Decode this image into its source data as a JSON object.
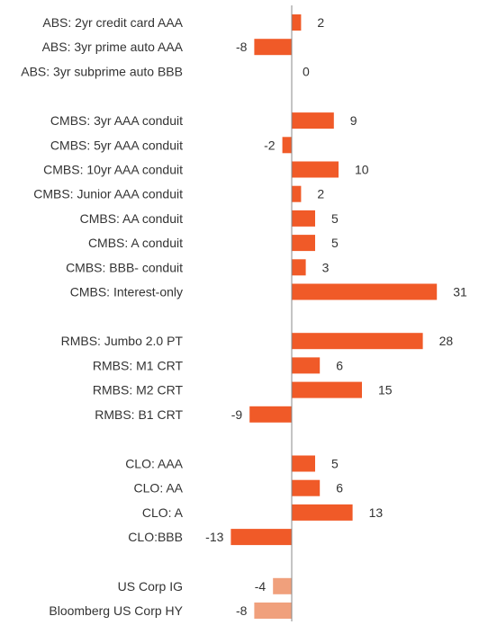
{
  "chart_data": {
    "type": "bar",
    "orientation": "horizontal",
    "title": "",
    "xlabel": "",
    "ylabel": "",
    "xlim": [
      -15,
      32
    ],
    "grid": false,
    "legend": "none",
    "colors": {
      "primary": "#f05a28",
      "secondary": "#f0a07c",
      "axis": "#888888"
    },
    "categories": [
      "ABS: 2yr credit card AAA",
      "ABS: 3yr prime auto AAA",
      "ABS: 3yr subprime auto BBB",
      "CMBS: 3yr AAA conduit",
      "CMBS: 5yr AAA conduit",
      "CMBS: 10yr AAA conduit",
      "CMBS: Junior AAA conduit",
      "CMBS: AA conduit",
      "CMBS: A conduit",
      "CMBS: BBB- conduit",
      "CMBS: Interest-only",
      "RMBS: Jumbo 2.0 PT",
      "RMBS: M1 CRT",
      "RMBS: M2 CRT",
      "RMBS: B1 CRT",
      "CLO: AAA",
      "CLO: AA",
      "CLO: A",
      "CLO:BBB",
      "US Corp IG",
      "Bloomberg US Corp HY"
    ],
    "values": [
      2,
      -8,
      0,
      9,
      -2,
      10,
      2,
      5,
      5,
      3,
      31,
      28,
      6,
      15,
      -9,
      5,
      6,
      13,
      -13,
      -4,
      -8
    ],
    "group": [
      0,
      0,
      0,
      1,
      1,
      1,
      1,
      1,
      1,
      1,
      1,
      2,
      2,
      2,
      2,
      3,
      3,
      3,
      3,
      4,
      4
    ],
    "highlight": [
      "primary",
      "primary",
      "primary",
      "primary",
      "primary",
      "primary",
      "primary",
      "primary",
      "primary",
      "primary",
      "primary",
      "primary",
      "primary",
      "primary",
      "primary",
      "primary",
      "primary",
      "primary",
      "primary",
      "secondary",
      "secondary"
    ],
    "value_labels": [
      "2",
      "-8",
      "0",
      "9",
      "-2",
      "10",
      "2",
      "5",
      "5",
      "3",
      "31",
      "28",
      "6",
      "15",
      "-9",
      "5",
      "6",
      "13",
      "-13",
      "-4",
      "-8"
    ]
  }
}
